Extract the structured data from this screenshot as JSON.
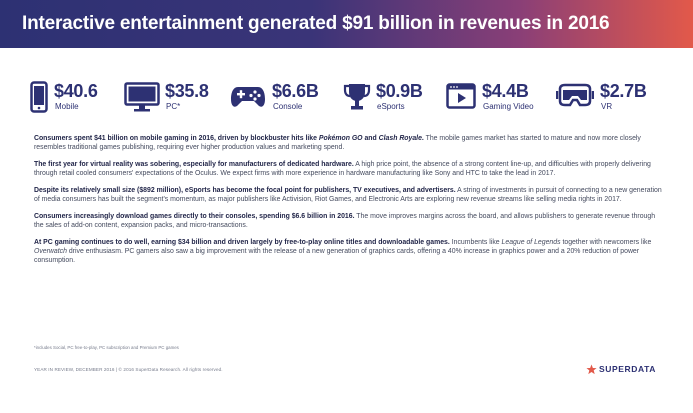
{
  "header": {
    "title": "Interactive entertainment generated $91 billion in revenues in 2016"
  },
  "stats": [
    {
      "icon": "mobile-phone-icon",
      "value": "$40.6",
      "label": "Mobile"
    },
    {
      "icon": "monitor-icon",
      "value": "$35.8",
      "label": "PC*"
    },
    {
      "icon": "gamepad-icon",
      "value": "$6.6B",
      "label": "Console"
    },
    {
      "icon": "trophy-icon",
      "value": "$0.9B",
      "label": "eSports"
    },
    {
      "icon": "video-player-icon",
      "value": "$4.4B",
      "label": "Gaming Video"
    },
    {
      "icon": "vr-headset-icon",
      "value": "$2.7B",
      "label": "VR"
    }
  ],
  "paragraphs": [
    {
      "lead": "Consumers spent $41 billion on mobile gaming in 2016, driven by blockbuster hits like ",
      "lead_em1": "Pokémon GO",
      "lead_mid": " and ",
      "lead_em2": "Clash Royale",
      "lead_end": ".",
      "body": " The mobile games market has started to mature and now more closely resembles traditional games publishing, requiring ever higher production values and marketing spend."
    },
    {
      "lead": "The first year for virtual reality was sobering, especially for manufacturers of dedicated hardware.",
      "body": " A high price point, the absence of a strong content line-up, and difficulties with properly delivering through retail cooled consumers' expectations of the Oculus. We expect firms with more experience in hardware manufacturing like Sony and HTC to take the lead in 2017."
    },
    {
      "lead": "Despite its relatively small size ($892 million), eSports has become the focal point for publishers, TV executives, and advertisers.",
      "body": " A string of investments in pursuit of connecting to a new generation of media consumers has built the segment's momentum, as major publishers like Activision, Riot Games, and Electronic Arts are exploring new revenue streams like selling media rights in 2017."
    },
    {
      "lead": "Consumers increasingly download games directly to their consoles, spending $6.6 billion in 2016.",
      "body": " The move improves margins across the board, and allows publishers to generate revenue through the sales of add-on content, expansion packs, and micro-transactions."
    },
    {
      "lead": "At PC gaming continues to do well, earning $34 billion and driven largely by free-to-play online titles and downloadable games.",
      "body1": " Incumbents like ",
      "em1": "League of Legends",
      "body2": " together with newcomers like ",
      "em2": "Overwatch",
      "body3": " drive enthusiasm. PC gamers also saw a big improvement with the release of a new generation of graphics cards, offering a 40% increase in graphics power and a 20% reduction of power consumption."
    }
  ],
  "footnote": "*includes Social, PC free-to-play, PC subscription and Premium PC games",
  "footer": {
    "left": "YEAR IN REVIEW, DECEMBER 2016  |  © 2016 SuperData Research. All rights reserved.",
    "logo_text": "SUPERDATA",
    "colors": {
      "navy": "#2d3173",
      "accent": "#e2594a"
    }
  }
}
